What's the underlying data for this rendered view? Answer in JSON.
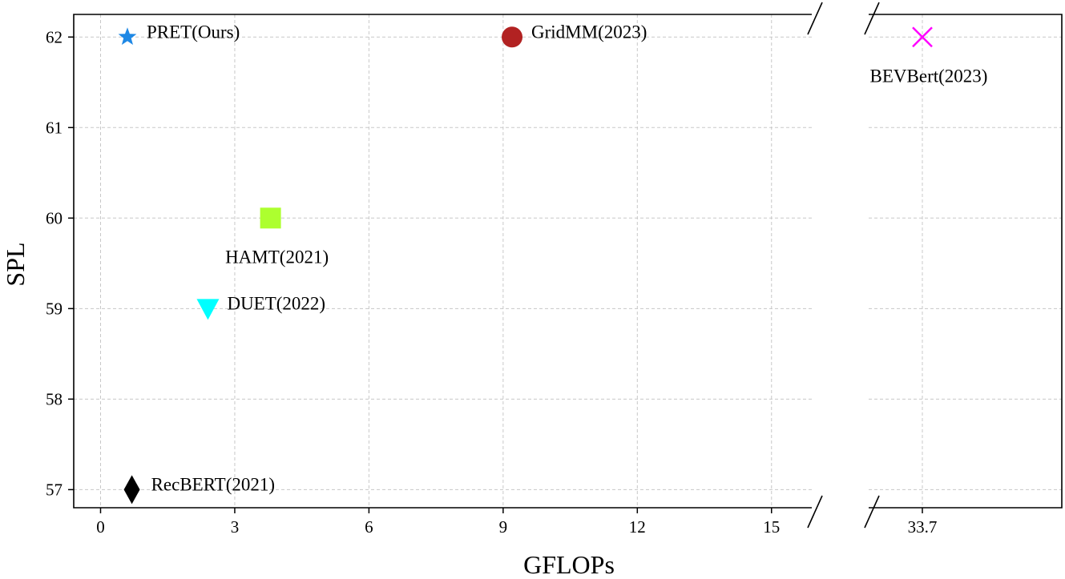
{
  "chart_data": {
    "type": "scatter",
    "xlabel": "GFLOPs",
    "ylabel": "SPL",
    "grid": true,
    "broken_x_axis": true,
    "left_panel": {
      "xlim": [
        -0.6,
        15.9
      ],
      "xticks": [
        0,
        3,
        6,
        9,
        12,
        15
      ]
    },
    "right_panel": {
      "xticks": [
        33.7
      ]
    },
    "ylim": [
      56.8,
      62.25
    ],
    "yticks": [
      57,
      58,
      59,
      60,
      61,
      62
    ],
    "points": [
      {
        "name": "PRET(Ours)",
        "x": 0.6,
        "y": 62,
        "marker": "star",
        "color": "#1e88e5",
        "panel": "left",
        "label_pos": "right"
      },
      {
        "name": "GridMM(2023)",
        "x": 9.2,
        "y": 62,
        "marker": "circle",
        "color": "#b22222",
        "panel": "left",
        "label_pos": "right"
      },
      {
        "name": "HAMT(2021)",
        "x": 3.8,
        "y": 60,
        "marker": "square",
        "color": "#adff2f",
        "panel": "left",
        "label_pos": "below"
      },
      {
        "name": "DUET(2022)",
        "x": 2.4,
        "y": 59,
        "marker": "triangle-down",
        "color": "#00ffff",
        "panel": "left",
        "label_pos": "right"
      },
      {
        "name": "RecBERT(2021)",
        "x": 0.7,
        "y": 57,
        "marker": "diamond",
        "color": "#000000",
        "panel": "left",
        "label_pos": "right"
      },
      {
        "name": "BEVBert(2023)",
        "x": 33.7,
        "y": 62,
        "marker": "x",
        "color": "#ff00ff",
        "panel": "right",
        "label_pos": "below"
      }
    ]
  }
}
